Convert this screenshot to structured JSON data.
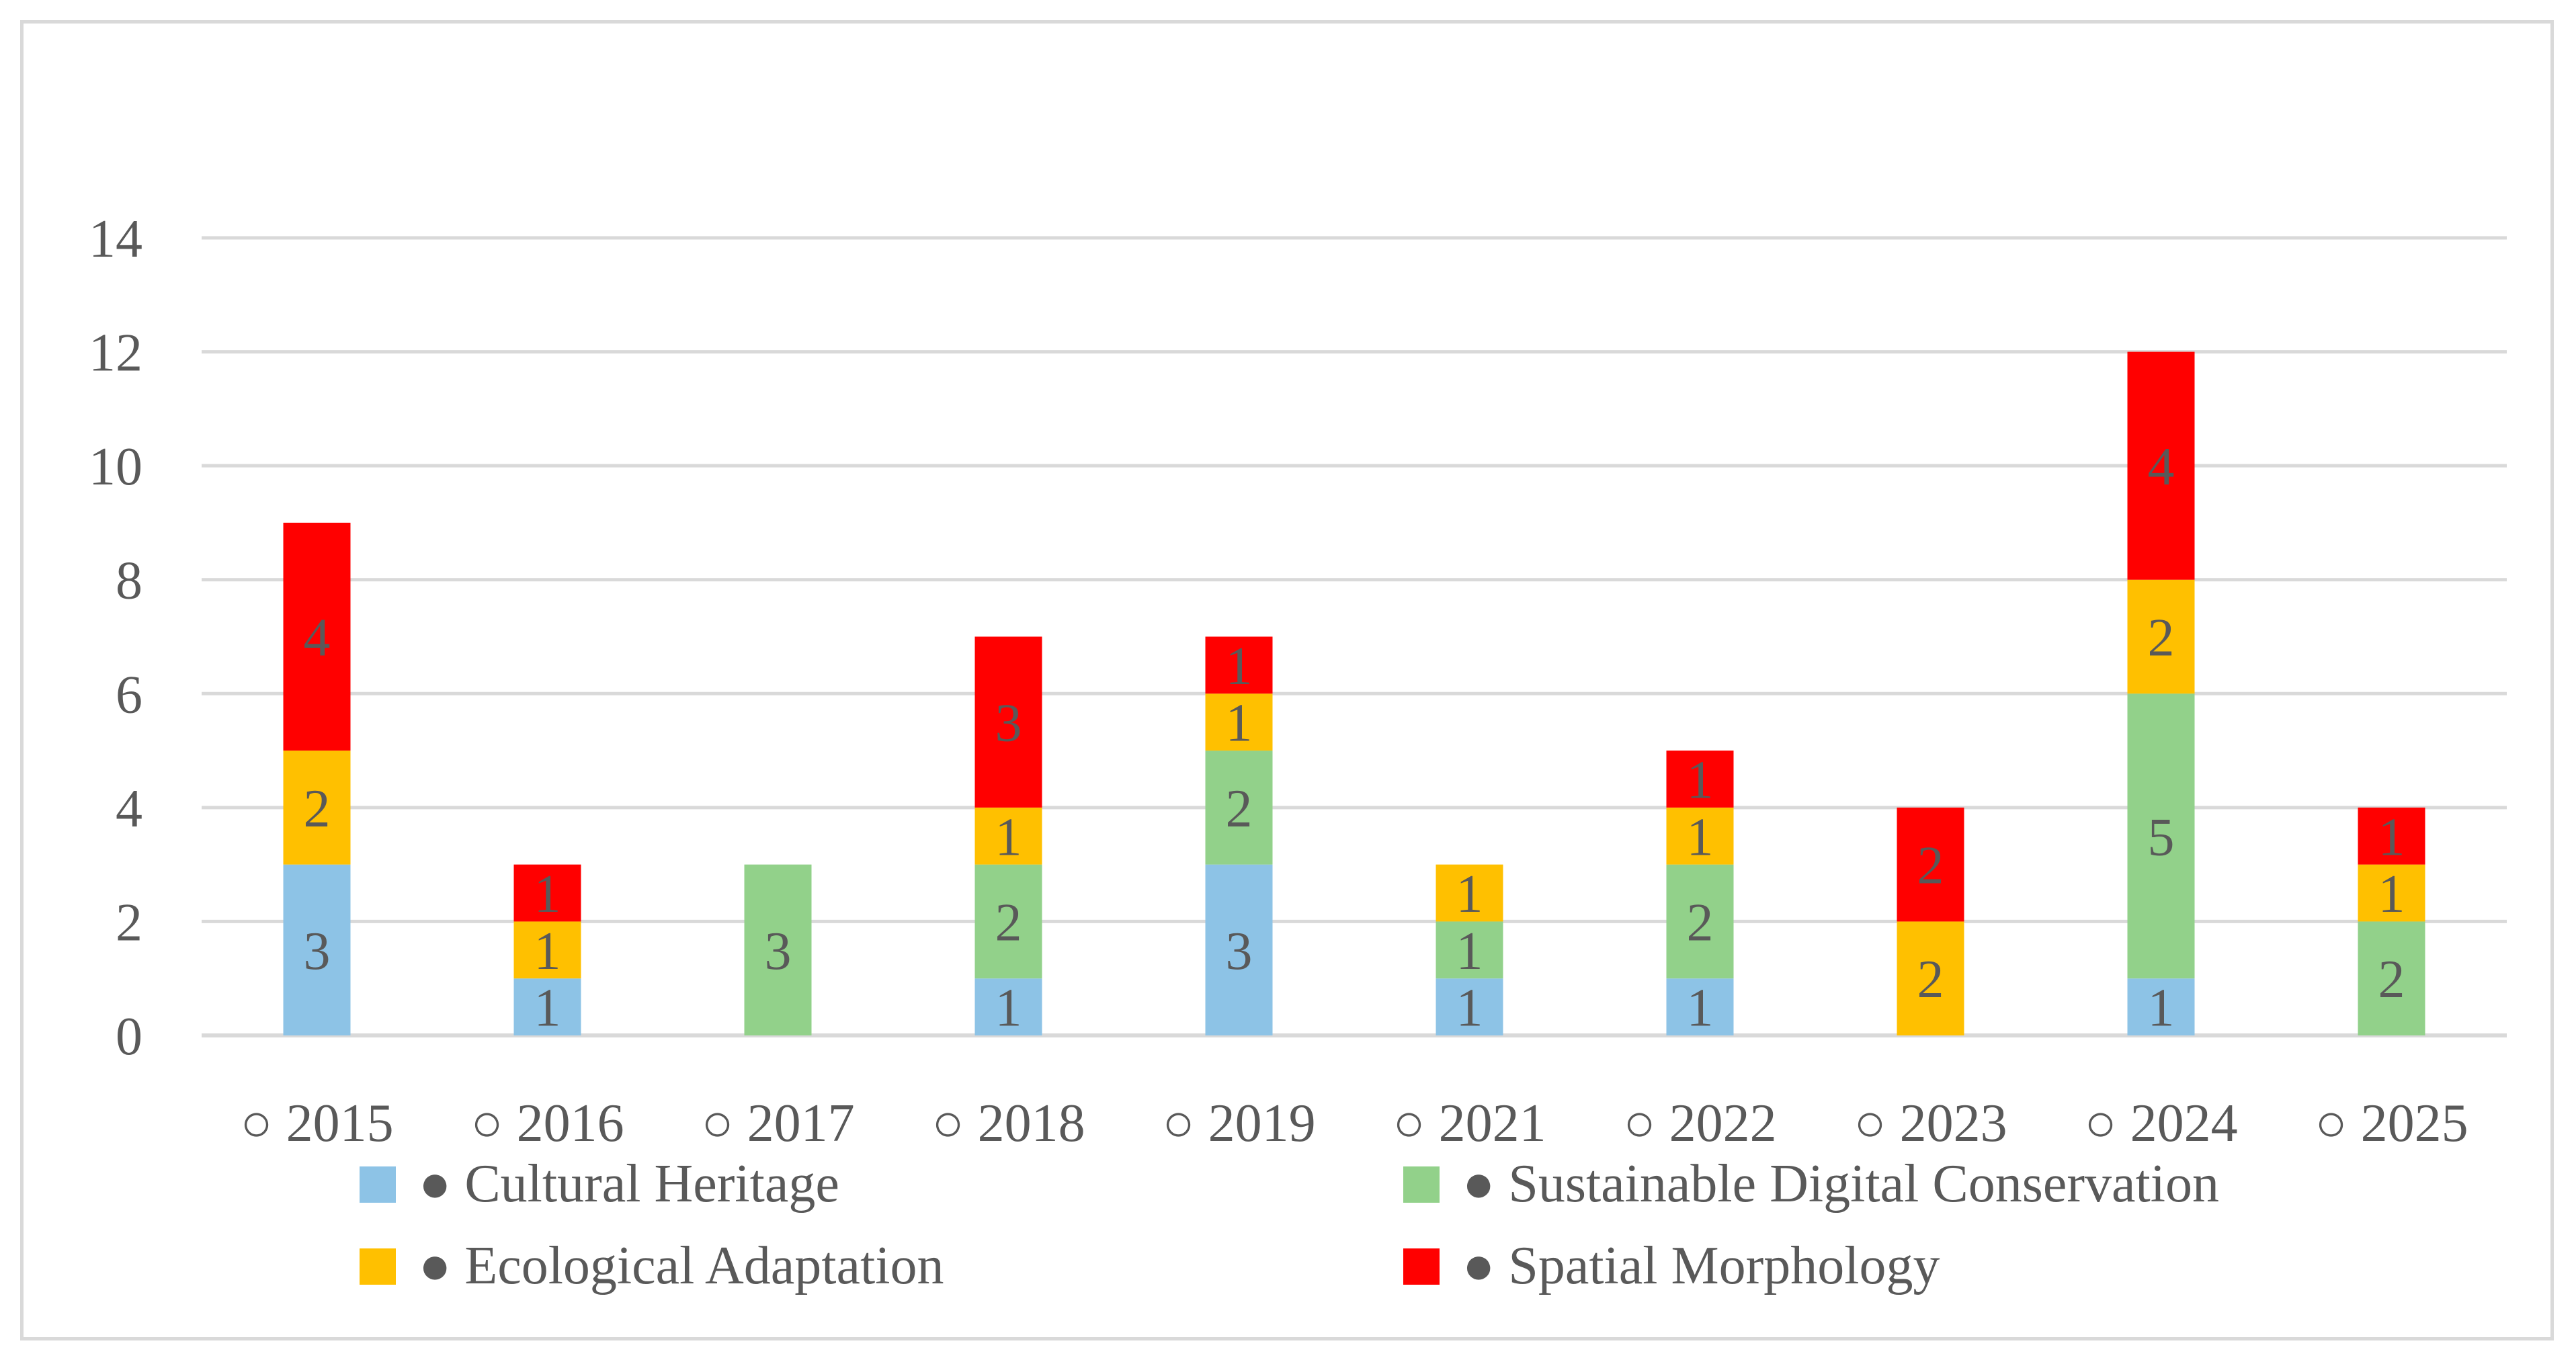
{
  "chart_data": {
    "type": "bar",
    "stacked": true,
    "title": "",
    "xlabel": "",
    "ylabel": "",
    "ylim": [
      0,
      14
    ],
    "yticks": [
      0,
      2,
      4,
      6,
      8,
      10,
      12,
      14
    ],
    "grid": true,
    "legend_position": "bottom",
    "categories": [
      "○ 2015",
      "○ 2016",
      "○ 2017",
      "○ 2018",
      "○ 2019",
      "○ 2021",
      "○ 2022",
      "○ 2023",
      "○ 2024",
      "○ 2025"
    ],
    "series": [
      {
        "name": "● Cultural Heritage",
        "color": "#8dc3e6",
        "values": [
          3,
          1,
          0,
          1,
          3,
          1,
          1,
          0,
          1,
          0
        ]
      },
      {
        "name": "● Sustainable Digital Conservation",
        "color": "#92d18a",
        "values": [
          0,
          0,
          3,
          2,
          2,
          1,
          2,
          0,
          5,
          2
        ]
      },
      {
        "name": "● Ecological Adaptation",
        "color": "#ffc000",
        "values": [
          2,
          1,
          0,
          1,
          1,
          1,
          1,
          2,
          2,
          1
        ]
      },
      {
        "name": "● Spatial Morphology",
        "color": "#ff0000",
        "values": [
          4,
          1,
          0,
          3,
          1,
          0,
          1,
          2,
          4,
          1
        ]
      }
    ],
    "label_color": "#595959",
    "grid_color": "#d9d9d9"
  }
}
